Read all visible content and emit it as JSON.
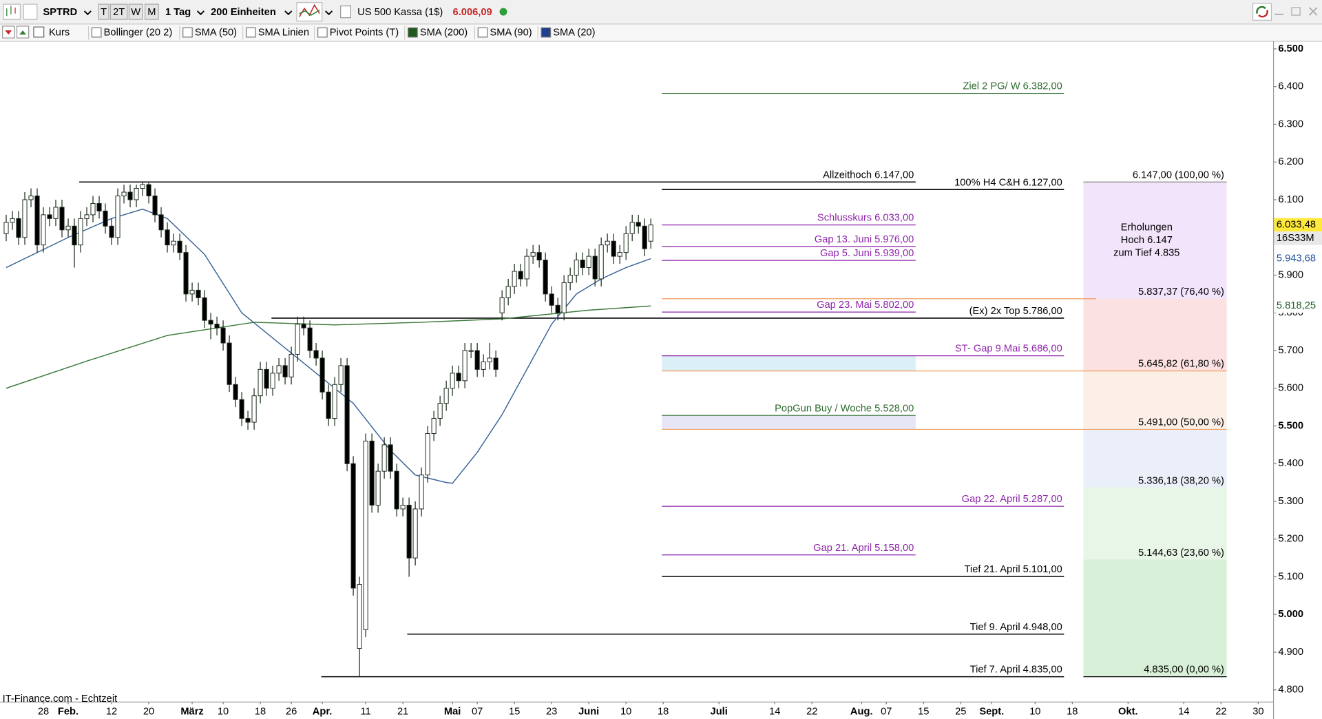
{
  "toolbar": {
    "symbol": "SPTRD",
    "periods": [
      "T",
      "2T",
      "W",
      "M"
    ],
    "interval": "1 Tag",
    "units": "200 Einheiten",
    "instrument": "US 500 Kassa (1$)",
    "last_price": "6.006,09"
  },
  "indicator_bar": {
    "items": [
      {
        "label": "Kurs"
      },
      {
        "label": "Bollinger (20 2)"
      },
      {
        "label": "SMA (50)"
      },
      {
        "label": "SMA Linien"
      },
      {
        "label": "Pivot Points (T)"
      },
      {
        "label": "SMA (200)",
        "color": "#1e5b1e"
      },
      {
        "label": "SMA (90)"
      },
      {
        "label": "SMA (20)",
        "color": "#1f3f8f"
      }
    ]
  },
  "chart_data": {
    "type": "candlestick",
    "up_color": "#ffffff",
    "down_color": "#000000",
    "xlim": [
      -1,
      204.4
    ],
    "ylim": [
      4769,
      6520
    ],
    "xticks": [
      {
        "value": 6,
        "label": "28"
      },
      {
        "value": 10,
        "label": "Feb."
      },
      {
        "value": 17,
        "label": "12"
      },
      {
        "value": 23,
        "label": "20"
      },
      {
        "value": 30,
        "label": "März"
      },
      {
        "value": 35,
        "label": "10"
      },
      {
        "value": 41,
        "label": "18"
      },
      {
        "value": 46,
        "label": "26"
      },
      {
        "value": 51,
        "label": "Apr."
      },
      {
        "value": 58,
        "label": "11"
      },
      {
        "value": 64,
        "label": "21"
      },
      {
        "value": 72,
        "label": "Mai"
      },
      {
        "value": 76,
        "label": "07"
      },
      {
        "value": 82,
        "label": "15"
      },
      {
        "value": 88,
        "label": "23"
      },
      {
        "value": 94,
        "label": "Juni"
      },
      {
        "value": 100,
        "label": "10"
      },
      {
        "value": 106,
        "label": "18"
      },
      {
        "value": 115,
        "label": "Juli"
      },
      {
        "value": 124,
        "label": "14"
      },
      {
        "value": 130,
        "label": "22"
      },
      {
        "value": 138,
        "label": "Aug."
      },
      {
        "value": 142,
        "label": "07"
      },
      {
        "value": 148,
        "label": "15"
      },
      {
        "value": 154,
        "label": "25"
      },
      {
        "value": 159,
        "label": "Sept."
      },
      {
        "value": 166,
        "label": "10"
      },
      {
        "value": 172,
        "label": "18"
      },
      {
        "value": 181,
        "label": "Okt."
      },
      {
        "value": 190,
        "label": "14"
      },
      {
        "value": 196,
        "label": "22"
      },
      {
        "value": 202,
        "label": "30"
      }
    ],
    "yticks": [
      {
        "value": 4800,
        "label": "4.800"
      },
      {
        "value": 4900,
        "label": "4.900"
      },
      {
        "value": 5000,
        "label": "5.000"
      },
      {
        "value": 5100,
        "label": "5.100"
      },
      {
        "value": 5200,
        "label": "5.200"
      },
      {
        "value": 5300,
        "label": "5.300"
      },
      {
        "value": 5400,
        "label": "5.400"
      },
      {
        "value": 5500,
        "label": "5.500"
      },
      {
        "value": 5600,
        "label": "5.600"
      },
      {
        "value": 5700,
        "label": "5.700"
      },
      {
        "value": 5800,
        "label": "5.800"
      },
      {
        "value": 5900,
        "label": "5.900"
      },
      {
        "value": 6100,
        "label": "6.100"
      },
      {
        "value": 6200,
        "label": "6.200"
      },
      {
        "value": 6300,
        "label": "6.300"
      },
      {
        "value": 6400,
        "label": "6.400"
      },
      {
        "value": 6500,
        "label": "6.500"
      }
    ],
    "candles": {
      "open": [
        6010,
        6040,
        6050,
        6000,
        6100,
        6110,
        5980,
        6060,
        6050,
        6080,
        6020,
        6030,
        5980,
        6050,
        6060,
        6090,
        6070,
        6030,
        6000,
        6110,
        6120,
        6100,
        6130,
        6140,
        6110,
        6060,
        6020,
        5980,
        5990,
        5960,
        5850,
        5860,
        5840,
        5780,
        5770,
        5760,
        5720,
        5610,
        5570,
        5520,
        5510,
        5580,
        5650,
        5600,
        5640,
        5660,
        5630,
        5690,
        5770,
        5760,
        5700,
        5680,
        5590,
        5520,
        5610,
        5660,
        5400,
        4910,
        4960,
        5460,
        5290,
        5380,
        5450,
        5380,
        5280,
        5290,
        5150,
        5280,
        5370,
        5480,
        5520,
        5560,
        5600,
        5640,
        5620,
        5700,
        5700,
        5650,
        5670,
        5680,
        5800,
        5840,
        5870,
        5910,
        5890,
        5950,
        5960,
        5940,
        5850,
        5820,
        5800,
        5880,
        5900,
        5940,
        5920,
        5950,
        5890,
        5980,
        5990,
        5950,
        5960,
        6010,
        6040,
        6030,
        5990
      ],
      "high": [
        6060,
        6070,
        6070,
        6120,
        6130,
        6130,
        6080,
        6080,
        6100,
        6100,
        6050,
        6050,
        6070,
        6080,
        6110,
        6110,
        6090,
        6050,
        6130,
        6140,
        6140,
        6140,
        6147,
        6145,
        6130,
        6080,
        6040,
        6010,
        6010,
        5980,
        5880,
        5880,
        5860,
        5800,
        5790,
        5780,
        5740,
        5630,
        5590,
        5540,
        5600,
        5670,
        5670,
        5660,
        5680,
        5680,
        5710,
        5790,
        5790,
        5780,
        5720,
        5700,
        5610,
        5630,
        5680,
        5680,
        5420,
        5100,
        5480,
        5480,
        5400,
        5470,
        5470,
        5400,
        5310,
        5310,
        5300,
        5390,
        5500,
        5540,
        5580,
        5620,
        5660,
        5660,
        5720,
        5720,
        5720,
        5690,
        5720,
        5700,
        5860,
        5890,
        5930,
        5930,
        5970,
        5980,
        5980,
        5960,
        5870,
        5840,
        5900,
        5920,
        5960,
        5960,
        5970,
        5970,
        6000,
        6010,
        6010,
        5980,
        6030,
        6060,
        6060,
        6050,
        6050
      ],
      "low": [
        5990,
        6020,
        5980,
        5980,
        6080,
        5960,
        5960,
        6030,
        6030,
        6000,
        6000,
        5920,
        5960,
        6030,
        6040,
        6050,
        6010,
        5980,
        5980,
        6090,
        6080,
        6080,
        6110,
        6090,
        6040,
        6000,
        5960,
        5960,
        5940,
        5830,
        5830,
        5820,
        5760,
        5730,
        5740,
        5700,
        5590,
        5550,
        5500,
        5490,
        5490,
        5560,
        5580,
        5580,
        5620,
        5610,
        5610,
        5670,
        5740,
        5680,
        5660,
        5570,
        5500,
        5500,
        5590,
        5380,
        5050,
        4835,
        4940,
        5270,
        5270,
        5360,
        5360,
        5260,
        5260,
        5100,
        5130,
        5260,
        5350,
        5460,
        5500,
        5540,
        5580,
        5600,
        5600,
        5680,
        5630,
        5630,
        5650,
        5630,
        5780,
        5820,
        5850,
        5870,
        5870,
        5930,
        5920,
        5830,
        5800,
        5780,
        5780,
        5860,
        5880,
        5900,
        5900,
        5870,
        5870,
        5960,
        5930,
        5930,
        5940,
        5990,
        6010,
        5950,
        5970
      ],
      "close": [
        6040,
        6050,
        6000,
        6100,
        6110,
        5980,
        6060,
        6050,
        6080,
        6020,
        6030,
        5980,
        6050,
        6060,
        6090,
        6070,
        6030,
        6000,
        6110,
        6120,
        6100,
        6130,
        6140,
        6110,
        6060,
        6020,
        5980,
        5990,
        5960,
        5850,
        5860,
        5840,
        5780,
        5770,
        5760,
        5720,
        5610,
        5570,
        5520,
        5510,
        5580,
        5650,
        5600,
        5640,
        5660,
        5630,
        5690,
        5770,
        5760,
        5700,
        5680,
        5590,
        5520,
        5610,
        5660,
        5400,
        5070,
        5080,
        5460,
        5290,
        5380,
        5450,
        5380,
        5280,
        5290,
        5150,
        5280,
        5370,
        5480,
        5520,
        5560,
        5600,
        5640,
        5620,
        5700,
        5700,
        5650,
        5670,
        5680,
        5650,
        5840,
        5870,
        5910,
        5890,
        5950,
        5960,
        5940,
        5850,
        5820,
        5800,
        5880,
        5900,
        5940,
        5920,
        5950,
        5890,
        5980,
        5990,
        5950,
        5960,
        6010,
        6040,
        6030,
        5970,
        6033
      ]
    },
    "lines": [
      {
        "color": "#3b6596",
        "x": [
          0,
          10,
          17,
          22,
          26,
          32,
          38,
          44,
          50,
          56,
          62,
          66,
          71,
          72,
          76,
          80,
          84,
          88,
          92,
          96,
          100,
          104
        ],
        "values": [
          5920,
          6000,
          6050,
          6075,
          6050,
          5955,
          5800,
          5720,
          5640,
          5560,
          5435,
          5370,
          5350,
          5348,
          5430,
          5530,
          5650,
          5770,
          5850,
          5890,
          5920,
          5943.68
        ]
      },
      {
        "color": "#3d7a3d",
        "x": [
          0,
          13,
          26,
          40,
          53,
          67,
          80,
          94,
          104
        ],
        "values": [
          5600,
          5672,
          5740,
          5775,
          5768,
          5775,
          5784,
          5807,
          5818.25
        ]
      }
    ],
    "levels": [
      {
        "label": "Ziel 2 PG/ W  6.382,00",
        "value": 6382,
        "color": "#2e6b2e"
      },
      {
        "label": "Allzeithoch  6.147,00",
        "value": 6147,
        "color": "#000000"
      },
      {
        "label": "100% H4 C&H  6.127,00",
        "value": 6127,
        "color": "#000000"
      },
      {
        "label": "Schlusskurs 6.033,00",
        "value": 6033,
        "color": "#8e24aa"
      },
      {
        "label": "Gap 13. Juni 5.976,00",
        "value": 5976,
        "color": "#8e24aa"
      },
      {
        "label": "Gap 5. Juni 5.939,00",
        "value": 5939,
        "color": "#8e24aa"
      },
      {
        "label": "Gap 23. Mai 5.802,00",
        "value": 5802,
        "color": "#8e24aa"
      },
      {
        "label": "(Ex) 2x Top  5.786,00",
        "value": 5786,
        "color": "#000000"
      },
      {
        "label": "ST- Gap 9.Mai 5.686,00",
        "value": 5686,
        "color": "#8e24aa"
      },
      {
        "label": "PopGun Buy / Woche 5.528,00",
        "value": 5528,
        "color": "#2e6b2e"
      },
      {
        "label": "Gap 22. April 5.287,00",
        "value": 5287,
        "color": "#8e24aa"
      },
      {
        "label": "Gap 21. April 5.158,00",
        "value": 5158,
        "color": "#8e24aa"
      },
      {
        "label": "Tief 21. April  5.101,00",
        "value": 5101,
        "color": "#000000"
      },
      {
        "label": "Tief 9. April 4.948,00",
        "value": 4948,
        "color": "#000000"
      },
      {
        "label": "Tief  7. April 4.835,00",
        "value": 4835,
        "color": "#000000"
      }
    ],
    "zones": [
      {
        "from": 5686,
        "to": 5646,
        "color": "#dbeff6"
      },
      {
        "from": 5528,
        "to": 5491,
        "color": "#e6e6f6"
      }
    ],
    "fibonacci": {
      "note": [
        "Erholungen",
        "Hoch 6.147",
        "zum Tief 4.835"
      ],
      "levels": [
        {
          "value": 6147,
          "pct": 100,
          "label": "6.147,00 (100,00 %)",
          "line": "#888888",
          "band": "#f2e4fb"
        },
        {
          "value": 5837.37,
          "pct": 76.4,
          "label": "5.837,37 (76,40 %)",
          "line": "#f29b5a",
          "band": "#fbe1e1"
        },
        {
          "value": 5645.82,
          "pct": 61.8,
          "label": "5.645,82 (61,80 %)",
          "line": "#f29b5a",
          "band": "#fcefe8"
        },
        {
          "value": 5491,
          "pct": 50,
          "label": "5.491,00 (50,00 %)",
          "line": "#f29b5a",
          "band": "#ebeff9"
        },
        {
          "value": 5336.18,
          "pct": 38.2,
          "label": "5.336,18 (38,20 %)",
          "line": "#e7f6e7",
          "band": "#e7f6e7"
        },
        {
          "value": 5144.63,
          "pct": 23.6,
          "label": "5.144,63 (23,60 %)",
          "line": "#d7f0d7",
          "band": "#d7f0d7"
        },
        {
          "value": 4835,
          "pct": 0,
          "label": "4.835,00 (0,00 %)",
          "line": "#000000"
        }
      ]
    },
    "price_tags": [
      {
        "value": 6033.48,
        "label": "6.033,48",
        "color": "#000000",
        "bg": "#ffe93b"
      },
      {
        "value": 5943.68,
        "label": "5.943,68",
        "color": "#1f4e9a",
        "bg": "#ffffff"
      },
      {
        "value": 5818.25,
        "label": "5.818,25",
        "color": "#1b5e20",
        "bg": "#ffffff"
      }
    ],
    "countdown": "16S33M"
  },
  "footer": "IT-Finance.com - Echtzeit"
}
